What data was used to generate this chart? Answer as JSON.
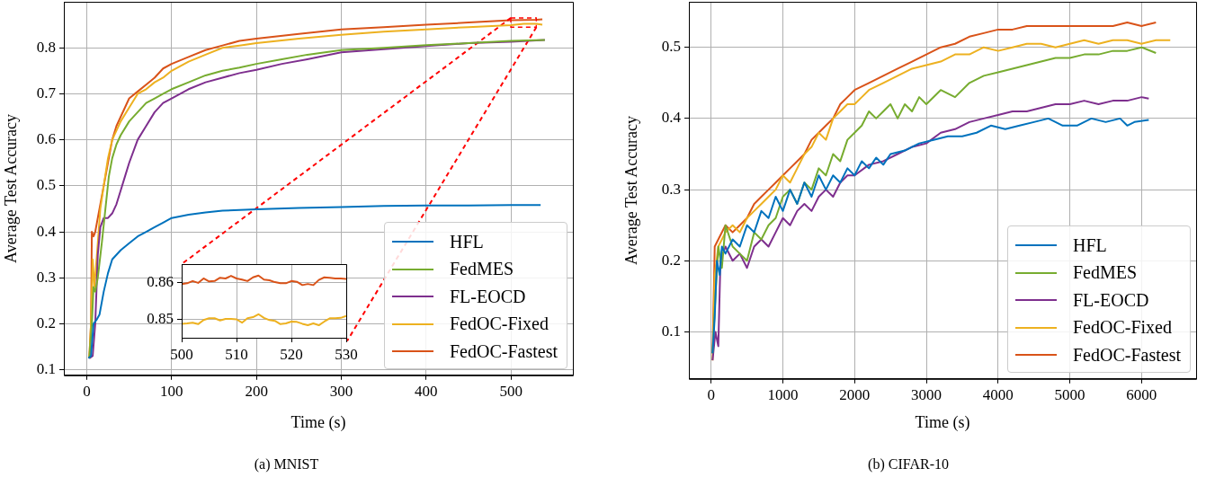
{
  "chart_data": [
    {
      "type": "line",
      "title": "(a) MNIST",
      "xlabel": "Time (s)",
      "ylabel": "Average Test Accuracy",
      "xlim": [
        -27,
        573
      ],
      "xticks": [
        0,
        100,
        200,
        300,
        400,
        500
      ],
      "ylim": [
        0.088,
        0.9
      ],
      "yticks": [
        0.1,
        0.2,
        0.3,
        0.4,
        0.5,
        0.6,
        0.7,
        0.8
      ],
      "grid": true,
      "legend": "bottom right",
      "series": [
        {
          "name": "HFL",
          "color": "#0072bd",
          "x": [
            2,
            5,
            8,
            12,
            15,
            20,
            25,
            30,
            40,
            50,
            60,
            70,
            80,
            90,
            100,
            120,
            140,
            160,
            200,
            250,
            300,
            350,
            400,
            450,
            500,
            535
          ],
          "values": [
            0.125,
            0.13,
            0.2,
            0.21,
            0.22,
            0.27,
            0.31,
            0.34,
            0.36,
            0.375,
            0.39,
            0.4,
            0.41,
            0.42,
            0.43,
            0.437,
            0.442,
            0.446,
            0.449,
            0.452,
            0.454,
            0.456,
            0.457,
            0.457,
            0.458,
            0.458
          ]
        },
        {
          "name": "FedMES",
          "color": "#77ac30",
          "x": [
            3,
            6,
            8,
            10,
            13,
            18,
            22,
            26,
            30,
            35,
            40,
            50,
            60,
            70,
            80,
            90,
            100,
            120,
            140,
            160,
            180,
            200,
            230,
            260,
            300,
            350,
            400,
            450,
            500,
            540
          ],
          "values": [
            0.125,
            0.2,
            0.28,
            0.27,
            0.3,
            0.38,
            0.45,
            0.52,
            0.56,
            0.59,
            0.61,
            0.64,
            0.66,
            0.68,
            0.69,
            0.7,
            0.71,
            0.725,
            0.74,
            0.75,
            0.757,
            0.765,
            0.775,
            0.785,
            0.795,
            0.8,
            0.806,
            0.81,
            0.815,
            0.817
          ]
        },
        {
          "name": "FL-EOCD",
          "color": "#7e2f8e",
          "x": [
            3,
            7,
            10,
            13,
            16,
            20,
            25,
            30,
            35,
            40,
            45,
            50,
            60,
            70,
            80,
            90,
            100,
            120,
            140,
            160,
            180,
            200,
            230,
            260,
            300,
            350,
            400,
            450,
            500,
            540
          ],
          "values": [
            0.125,
            0.13,
            0.2,
            0.35,
            0.41,
            0.43,
            0.43,
            0.44,
            0.46,
            0.49,
            0.52,
            0.55,
            0.6,
            0.63,
            0.66,
            0.68,
            0.69,
            0.71,
            0.725,
            0.735,
            0.745,
            0.752,
            0.765,
            0.775,
            0.79,
            0.797,
            0.804,
            0.81,
            0.813,
            0.817
          ]
        },
        {
          "name": "FedOC-Fixed",
          "color": "#edb120",
          "x": [
            3,
            5,
            7,
            9,
            12,
            16,
            20,
            25,
            30,
            40,
            50,
            60,
            70,
            80,
            90,
            100,
            120,
            140,
            160,
            180,
            200,
            250,
            300,
            350,
            400,
            450,
            500,
            515,
            530,
            537
          ],
          "values": [
            0.125,
            0.2,
            0.34,
            0.28,
            0.35,
            0.45,
            0.5,
            0.56,
            0.6,
            0.64,
            0.67,
            0.7,
            0.71,
            0.725,
            0.735,
            0.75,
            0.77,
            0.785,
            0.8,
            0.805,
            0.81,
            0.82,
            0.828,
            0.835,
            0.84,
            0.845,
            0.849,
            0.852,
            0.852,
            0.85
          ]
        },
        {
          "color": "#ff0000",
          "line_style": "dashed",
          "x": [
            500,
            112
          ],
          "values": [
            0.865,
            0.33
          ]
        },
        {
          "color": "#ff0000",
          "line_style": "dashed",
          "x": [
            530,
            307
          ],
          "values": [
            0.845,
            0.163
          ]
        },
        {
          "name": "FedOC-Fastest",
          "color": "#d95319",
          "x": [
            3,
            5,
            6,
            8,
            10,
            15,
            20,
            25,
            30,
            35,
            40,
            50,
            60,
            70,
            80,
            90,
            100,
            120,
            140,
            160,
            180,
            200,
            250,
            300,
            350,
            400,
            450,
            500,
            530,
            537
          ],
          "values": [
            0.125,
            0.2,
            0.4,
            0.39,
            0.4,
            0.45,
            0.5,
            0.55,
            0.6,
            0.63,
            0.65,
            0.69,
            0.705,
            0.72,
            0.735,
            0.755,
            0.765,
            0.78,
            0.795,
            0.805,
            0.815,
            0.82,
            0.83,
            0.84,
            0.845,
            0.85,
            0.855,
            0.86,
            0.861,
            0.862
          ]
        }
      ]
    },
    {
      "type": "line",
      "xlim": [
        500,
        530
      ],
      "xticks": [
        500,
        510,
        520,
        530
      ],
      "ylim": [
        0.8449,
        0.8649
      ],
      "yticks": [
        0.85,
        0.86
      ],
      "grid": true,
      "x": [
        500,
        501,
        502,
        503,
        504,
        505,
        506,
        507,
        508,
        509,
        510,
        511,
        512,
        513,
        514,
        515,
        516,
        517,
        518,
        519,
        520,
        521,
        522,
        523,
        524,
        525,
        526,
        527,
        528,
        529,
        530
      ],
      "series": [
        {
          "color": "#d95319",
          "values": [
            0.8595,
            0.8597,
            0.8603,
            0.8598,
            0.861,
            0.8602,
            0.8603,
            0.8612,
            0.861,
            0.8617,
            0.861,
            0.8607,
            0.8603,
            0.8613,
            0.8618,
            0.8607,
            0.8605,
            0.86,
            0.8597,
            0.8597,
            0.8603,
            0.8601,
            0.8592,
            0.8595,
            0.8592,
            0.8606,
            0.8613,
            0.8612,
            0.861,
            0.861,
            0.8609
          ]
        },
        {
          "color": "#edb120",
          "values": [
            0.8487,
            0.8488,
            0.849,
            0.8486,
            0.8497,
            0.8502,
            0.8502,
            0.8496,
            0.85,
            0.85,
            0.8499,
            0.849,
            0.8502,
            0.8505,
            0.8513,
            0.8503,
            0.8497,
            0.8495,
            0.8486,
            0.8488,
            0.8493,
            0.8492,
            0.8487,
            0.8483,
            0.8488,
            0.8483,
            0.8493,
            0.8502,
            0.8502,
            0.8503,
            0.8508
          ]
        }
      ]
    },
    {
      "type": "line",
      "title": "(b) CIFAR-10",
      "xlabel": "Time (s)",
      "ylabel": "Average Test Accuracy",
      "xlim": [
        -310,
        6760
      ],
      "xticks": [
        0,
        1000,
        2000,
        3000,
        4000,
        5000,
        6000
      ],
      "ylim": [
        0.034,
        0.564
      ],
      "yticks": [
        0.1,
        0.2,
        0.3,
        0.4,
        0.5
      ],
      "grid": true,
      "legend": "bottom right",
      "series": [
        {
          "name": "HFL",
          "color": "#0072bd",
          "x": [
            20,
            50,
            80,
            120,
            150,
            200,
            300,
            400,
            500,
            600,
            700,
            800,
            900,
            1000,
            1100,
            1200,
            1300,
            1400,
            1500,
            1600,
            1700,
            1800,
            1900,
            2000,
            2100,
            2200,
            2300,
            2400,
            2500,
            2700,
            2900,
            3100,
            3300,
            3500,
            3700,
            3900,
            4100,
            4300,
            4500,
            4700,
            4900,
            5100,
            5300,
            5500,
            5700,
            5800,
            5900,
            6100
          ],
          "values": [
            0.07,
            0.12,
            0.2,
            0.18,
            0.22,
            0.21,
            0.23,
            0.22,
            0.25,
            0.24,
            0.27,
            0.26,
            0.29,
            0.27,
            0.3,
            0.28,
            0.31,
            0.29,
            0.32,
            0.3,
            0.32,
            0.31,
            0.33,
            0.32,
            0.34,
            0.33,
            0.345,
            0.335,
            0.35,
            0.355,
            0.365,
            0.37,
            0.375,
            0.375,
            0.38,
            0.39,
            0.385,
            0.39,
            0.395,
            0.4,
            0.39,
            0.39,
            0.4,
            0.395,
            0.4,
            0.39,
            0.395,
            0.398
          ]
        },
        {
          "name": "FedMES",
          "color": "#77ac30",
          "x": [
            20,
            60,
            100,
            150,
            200,
            300,
            400,
            500,
            600,
            700,
            800,
            900,
            1000,
            1100,
            1200,
            1300,
            1400,
            1500,
            1600,
            1700,
            1800,
            1900,
            2000,
            2100,
            2200,
            2300,
            2400,
            2500,
            2600,
            2700,
            2800,
            2900,
            3000,
            3200,
            3400,
            3600,
            3800,
            4000,
            4200,
            4400,
            4600,
            4800,
            5000,
            5200,
            5400,
            5600,
            5800,
            6000,
            6200
          ],
          "values": [
            0.07,
            0.15,
            0.22,
            0.19,
            0.25,
            0.22,
            0.21,
            0.2,
            0.24,
            0.23,
            0.25,
            0.26,
            0.29,
            0.3,
            0.28,
            0.31,
            0.3,
            0.33,
            0.32,
            0.35,
            0.34,
            0.37,
            0.38,
            0.39,
            0.41,
            0.4,
            0.41,
            0.42,
            0.4,
            0.42,
            0.41,
            0.43,
            0.42,
            0.44,
            0.43,
            0.45,
            0.46,
            0.465,
            0.47,
            0.475,
            0.48,
            0.485,
            0.485,
            0.49,
            0.49,
            0.495,
            0.495,
            0.5,
            0.492
          ]
        },
        {
          "name": "FL-EOCD",
          "color": "#7e2f8e",
          "x": [
            20,
            60,
            100,
            130,
            200,
            300,
            400,
            500,
            600,
            700,
            800,
            900,
            1000,
            1100,
            1200,
            1300,
            1400,
            1500,
            1600,
            1700,
            1800,
            1900,
            2000,
            2200,
            2400,
            2600,
            2800,
            3000,
            3200,
            3400,
            3600,
            3800,
            4000,
            4200,
            4400,
            4600,
            4800,
            5000,
            5200,
            5400,
            5600,
            5800,
            6000,
            6100
          ],
          "values": [
            0.06,
            0.1,
            0.08,
            0.2,
            0.22,
            0.2,
            0.21,
            0.19,
            0.22,
            0.23,
            0.22,
            0.24,
            0.26,
            0.25,
            0.27,
            0.28,
            0.27,
            0.29,
            0.3,
            0.29,
            0.31,
            0.32,
            0.32,
            0.335,
            0.34,
            0.35,
            0.36,
            0.365,
            0.38,
            0.385,
            0.395,
            0.4,
            0.405,
            0.41,
            0.41,
            0.415,
            0.42,
            0.42,
            0.425,
            0.42,
            0.425,
            0.425,
            0.43,
            0.428
          ]
        },
        {
          "name": "FedOC-Fixed",
          "color": "#edb120",
          "x": [
            20,
            50,
            100,
            200,
            300,
            400,
            500,
            600,
            700,
            800,
            900,
            1000,
            1100,
            1200,
            1300,
            1400,
            1500,
            1600,
            1700,
            1800,
            1900,
            2000,
            2100,
            2200,
            2400,
            2600,
            2800,
            3000,
            3200,
            3400,
            3600,
            3800,
            4000,
            4200,
            4400,
            4600,
            4800,
            5000,
            5200,
            5400,
            5600,
            5800,
            6000,
            6200,
            6400
          ],
          "values": [
            0.06,
            0.18,
            0.22,
            0.24,
            0.25,
            0.24,
            0.26,
            0.27,
            0.28,
            0.29,
            0.3,
            0.32,
            0.31,
            0.33,
            0.35,
            0.36,
            0.38,
            0.37,
            0.4,
            0.41,
            0.42,
            0.42,
            0.43,
            0.44,
            0.45,
            0.46,
            0.47,
            0.475,
            0.48,
            0.49,
            0.49,
            0.5,
            0.495,
            0.5,
            0.505,
            0.505,
            0.5,
            0.505,
            0.51,
            0.505,
            0.51,
            0.51,
            0.505,
            0.51,
            0.51
          ]
        },
        {
          "name": "FedOC-Fastest",
          "color": "#d95319",
          "x": [
            20,
            50,
            100,
            200,
            300,
            400,
            500,
            600,
            700,
            800,
            900,
            1000,
            1100,
            1200,
            1300,
            1400,
            1500,
            1600,
            1700,
            1800,
            1900,
            2000,
            2200,
            2400,
            2600,
            2800,
            3000,
            3200,
            3400,
            3600,
            3800,
            4000,
            4200,
            4400,
            4600,
            4800,
            5000,
            5200,
            5400,
            5600,
            5800,
            6000,
            6200
          ],
          "values": [
            0.07,
            0.22,
            0.23,
            0.25,
            0.24,
            0.25,
            0.26,
            0.28,
            0.29,
            0.3,
            0.31,
            0.32,
            0.33,
            0.34,
            0.35,
            0.37,
            0.38,
            0.39,
            0.4,
            0.42,
            0.43,
            0.44,
            0.45,
            0.46,
            0.47,
            0.48,
            0.49,
            0.5,
            0.505,
            0.515,
            0.52,
            0.525,
            0.525,
            0.53,
            0.53,
            0.53,
            0.53,
            0.53,
            0.53,
            0.53,
            0.535,
            0.53,
            0.535
          ]
        }
      ]
    }
  ]
}
